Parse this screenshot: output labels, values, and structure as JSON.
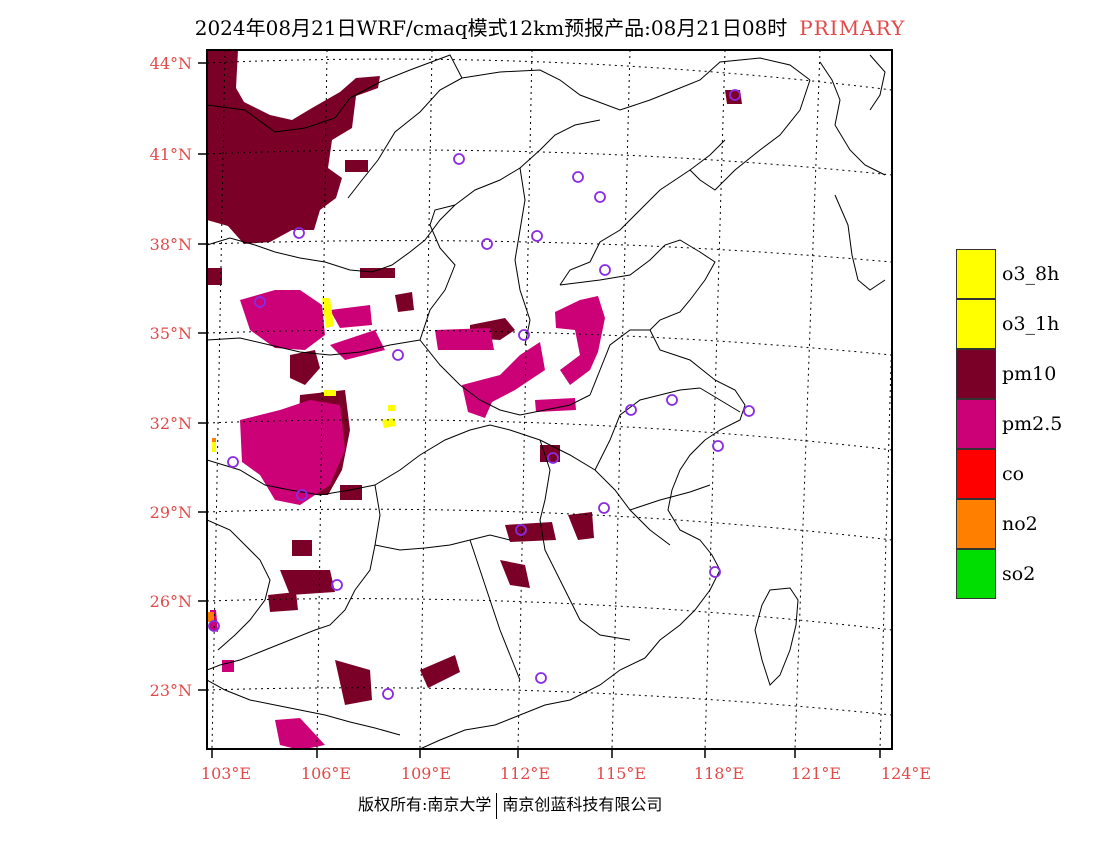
{
  "header": {
    "title": "2024年08月21日WRF/cmaq模式12km预报产品:08月21日08时",
    "tag": "PRIMARY"
  },
  "map": {
    "lat_labels": [
      "44°N",
      "41°N",
      "38°N",
      "35°N",
      "32°N",
      "29°N",
      "26°N",
      "23°N"
    ],
    "lon_labels": [
      "103°E",
      "106°E",
      "109°E",
      "112°E",
      "115°E",
      "118°E",
      "121°E",
      "124°E"
    ],
    "colors": {
      "pm10": "#7b0028",
      "pm25": "#cc0077",
      "o3": "#ffff00",
      "no2": "#ff7f00",
      "station": "#8a2be2",
      "border": "#000000",
      "grid": "#000000"
    }
  },
  "legend": {
    "items": [
      {
        "label": "o3_8h",
        "color": "#ffff00"
      },
      {
        "label": "o3_1h",
        "color": "#ffff00"
      },
      {
        "label": "pm10",
        "color": "#7b0028"
      },
      {
        "label": "pm2.5",
        "color": "#cc0077"
      },
      {
        "label": "co",
        "color": "#ff0000"
      },
      {
        "label": "no2",
        "color": "#ff7f00"
      },
      {
        "label": "so2",
        "color": "#00dd00"
      }
    ]
  },
  "footer": {
    "copyright": "版权所有:南京大学",
    "company": "南京创蓝科技有限公司"
  }
}
